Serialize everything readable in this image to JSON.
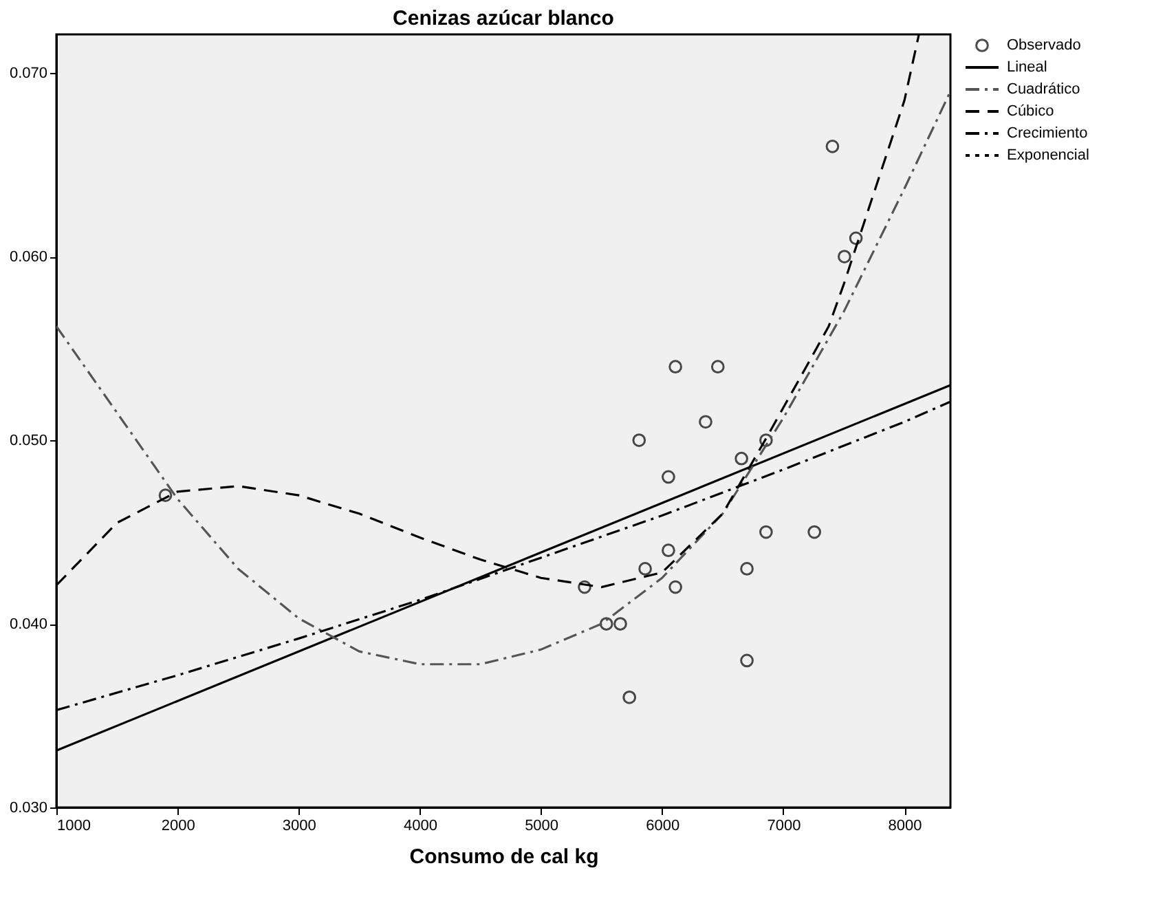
{
  "chart_data": {
    "type": "scatter",
    "title": "Cenizas azúcar blanco",
    "xlabel": "Consumo de cal kg",
    "xlim": [
      1000,
      8380
    ],
    "xticks": [
      1000,
      2000,
      3000,
      4000,
      5000,
      6000,
      7000,
      8000
    ],
    "ylim": [
      0.03,
      0.0721
    ],
    "yticks": [
      {
        "value": 0.03,
        "label": "0.030"
      },
      {
        "value": 0.04,
        "label": "0.040"
      },
      {
        "value": 0.05,
        "label": "0.050"
      },
      {
        "value": 0.06,
        "label": "0.060"
      },
      {
        "value": 0.07,
        "label": "0.070"
      }
    ],
    "grid": false,
    "legend": "top right",
    "series": [
      {
        "name": "Observado",
        "marker": "circle",
        "color": "#000000",
        "x": [
          1900,
          5360,
          5540,
          5655,
          5730,
          5810,
          5860,
          6052,
          6052,
          6110,
          6110,
          6359,
          6460,
          6655,
          6700,
          6700,
          6858,
          6858,
          7257,
          7406,
          7505,
          7600
        ],
        "values": [
          0.047,
          0.042,
          0.04,
          0.04,
          0.036,
          0.05,
          0.043,
          0.048,
          0.044,
          0.054,
          0.042,
          0.051,
          0.054,
          0.049,
          0.043,
          0.038,
          0.05,
          0.045,
          0.045,
          0.066,
          0.06,
          0.061
        ]
      },
      {
        "name": "Lineal",
        "type": "line",
        "line_style": "solid",
        "color": "#000000",
        "x": [
          1000,
          8380
        ],
        "values": [
          0.0331,
          0.053
        ]
      },
      {
        "name": "Cuadrático",
        "type": "line",
        "line_style": "dashdot",
        "color": "#555555",
        "x": [
          1000,
          1500,
          2000,
          2500,
          3000,
          3500,
          4000,
          4500,
          5000,
          5500,
          6000,
          6500,
          7000,
          7500,
          8000,
          8380
        ],
        "values": [
          0.0562,
          0.0515,
          0.0468,
          0.043,
          0.0403,
          0.0385,
          0.0378,
          0.0378,
          0.0386,
          0.04,
          0.0425,
          0.046,
          0.0512,
          0.057,
          0.0637,
          0.069
        ]
      },
      {
        "name": "Cúbico",
        "type": "line",
        "line_style": "dashed",
        "color": "#000000",
        "x": [
          1000,
          1500,
          2000,
          2500,
          3000,
          3500,
          4000,
          4500,
          5000,
          5500,
          6000,
          6500,
          6850,
          7190,
          7375,
          7500,
          8000,
          8120
        ],
        "values": [
          0.0421,
          0.0455,
          0.0472,
          0.0475,
          0.047,
          0.046,
          0.0447,
          0.0435,
          0.0425,
          0.042,
          0.0428,
          0.046,
          0.05,
          0.054,
          0.0562,
          0.0585,
          0.0685,
          0.0721
        ]
      },
      {
        "name": "Crecimiento",
        "type": "line",
        "line_style": "dashdot",
        "color": "#000000",
        "x": [
          1000,
          2000,
          3000,
          4000,
          5000,
          6000,
          7000,
          8000,
          8380
        ],
        "values": [
          0.0353,
          0.0372,
          0.0392,
          0.0413,
          0.0436,
          0.0459,
          0.0484,
          0.051,
          0.0521
        ]
      },
      {
        "name": "Exponencial",
        "type": "line",
        "line_style": "dotted",
        "color": "#000000"
      }
    ]
  }
}
